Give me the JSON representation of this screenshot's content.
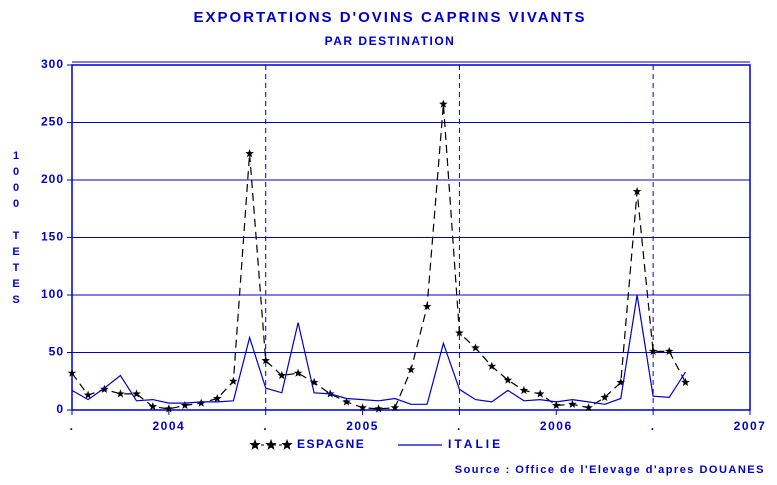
{
  "chart_data": {
    "type": "line",
    "title": "EXPORTATIONS D'OVINS CAPRINS VIVANTS",
    "subtitle": "PAR DESTINATION",
    "y_label": "1000 TETES",
    "source": "Source : Office de l'Elevage d'apres DOUANES",
    "x": [
      2004.0,
      2004.083,
      2004.167,
      2004.25,
      2004.333,
      2004.417,
      2004.5,
      2004.583,
      2004.667,
      2004.75,
      2004.833,
      2004.917,
      2005.0,
      2005.083,
      2005.167,
      2005.25,
      2005.333,
      2005.417,
      2005.5,
      2005.583,
      2005.667,
      2005.75,
      2005.833,
      2005.917,
      2006.0,
      2006.083,
      2006.167,
      2006.25,
      2006.333,
      2006.417,
      2006.5,
      2006.583,
      2006.667,
      2006.75,
      2006.833,
      2006.917,
      2007.0,
      2007.083,
      2007.167
    ],
    "series": [
      {
        "name": "ESPAGNE",
        "color": "#000000",
        "dashed": true,
        "marker": "star",
        "values": [
          32,
          13,
          18,
          14,
          14,
          3,
          1,
          4,
          6,
          10,
          25,
          223,
          43,
          30,
          32,
          24,
          14,
          7,
          2,
          1,
          2,
          35,
          90,
          266,
          67,
          54,
          38,
          26,
          17,
          14,
          4,
          5,
          2,
          11,
          24,
          190,
          51,
          51,
          24
        ]
      },
      {
        "name": "ITALIE",
        "color": "#0000cc",
        "dashed": false,
        "marker": "none",
        "values": [
          17,
          9,
          19,
          30,
          8,
          9,
          6,
          6,
          7,
          7,
          8,
          63,
          19,
          15,
          76,
          15,
          14,
          10,
          9,
          8,
          10,
          5,
          5,
          58,
          18,
          9,
          7,
          17,
          8,
          9,
          7,
          9,
          7,
          5,
          10,
          100,
          12,
          11,
          33
        ]
      }
    ],
    "xlim": [
      2004,
      2007.5
    ],
    "xticks": [
      {
        "value": 2004,
        "label": "."
      },
      {
        "value": 2004.5,
        "label": "2004"
      },
      {
        "value": 2005,
        "label": "."
      },
      {
        "value": 2005.5,
        "label": "2005"
      },
      {
        "value": 2006,
        "label": "."
      },
      {
        "value": 2006.5,
        "label": "2006"
      },
      {
        "value": 2007,
        "label": "."
      },
      {
        "value": 2007.5,
        "label": "2007"
      }
    ],
    "ylim": [
      0,
      300
    ],
    "yticks": [
      0,
      50,
      100,
      150,
      200,
      250,
      300
    ],
    "grid": true
  }
}
